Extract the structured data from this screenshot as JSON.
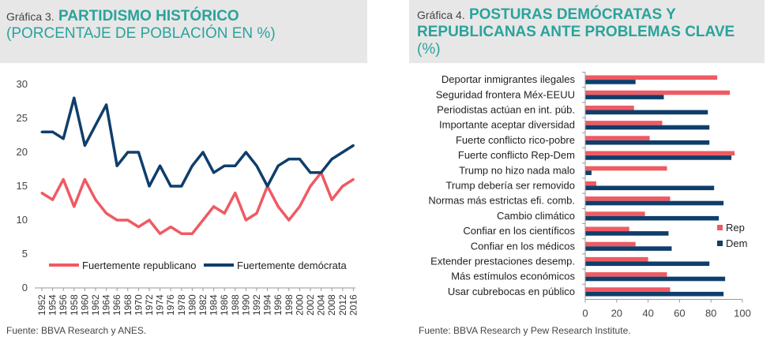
{
  "chart_data": [
    {
      "type": "line",
      "label": "Gráfica 3.",
      "title": "PARTIDISMO HISTÓRICO",
      "subtitle": "(PORCENTAJE DE POBLACIÓN EN %)",
      "x": [
        "1952",
        "1954",
        "1956",
        "1958",
        "1960",
        "1962",
        "1964",
        "1966",
        "1968",
        "1970",
        "1972",
        "1974",
        "1976",
        "1978",
        "1980",
        "1982",
        "1984",
        "1986",
        "1988",
        "1990",
        "1992",
        "1994",
        "1996",
        "1998",
        "2000",
        "2002",
        "2004",
        "2008",
        "2012",
        "2016"
      ],
      "series": [
        {
          "name": "Fuertemente republicano",
          "color": "#ef5a63",
          "values": [
            14,
            13,
            16,
            12,
            16,
            13,
            11,
            10,
            10,
            9,
            10,
            8,
            9,
            8,
            8,
            10,
            12,
            11,
            14,
            10,
            11,
            15,
            12,
            10,
            12,
            15,
            17,
            13,
            15,
            16
          ]
        },
        {
          "name": "Fuertemente demócrata",
          "color": "#0f3e6b",
          "values": [
            23,
            23,
            22,
            28,
            21,
            24,
            27,
            18,
            20,
            20,
            15,
            18,
            15,
            15,
            18,
            20,
            17,
            18,
            18,
            20,
            18,
            15,
            18,
            19,
            19,
            17,
            17,
            19,
            20,
            21
          ]
        }
      ],
      "ylim": [
        0,
        30
      ],
      "yticks": [
        "0",
        "5",
        "10",
        "15",
        "20",
        "25",
        "30"
      ],
      "legend_position": "bottom",
      "source": "Fuente: BBVA Research y ANES."
    },
    {
      "type": "bar",
      "orientation": "horizontal",
      "label": "Gráfica 4.",
      "title": "POSTURAS DEMÓCRATAS Y REPUBLICANAS ANTE PROBLEMAS CLAVE",
      "title_line1": "POSTURAS DEMÓCRATAS Y",
      "title_line2": "REPUBLICANAS ANTE PROBLEMAS CLAVE",
      "subtitle": "(%)",
      "categories": [
        "Deportar inmigrantes ilegales",
        "Seguridad frontera Méx-EEUU",
        "Periodistas actúan en int. púb.",
        "Importante aceptar diversidad",
        "Fuerte conflicto rico-pobre",
        "Fuerte conflicto Rep-Dem",
        "Trump no hizo nada malo",
        "Trump debería ser removido",
        "Normas más estrictas efi. comb.",
        "Cambio climático",
        "Confiar en los científicos",
        "Confiar en los médicos",
        "Extender prestaciones desemp.",
        "Más estímulos económicos",
        "Usar cubrebocas en público"
      ],
      "series": [
        {
          "name": "Rep",
          "color": "#ef5a63",
          "values": [
            84,
            92,
            31,
            49,
            41,
            95,
            52,
            7,
            54,
            38,
            28,
            32,
            40,
            52,
            54
          ]
        },
        {
          "name": "Dem",
          "color": "#0f3e6b",
          "values": [
            32,
            50,
            78,
            79,
            79,
            93,
            4,
            82,
            88,
            85,
            53,
            55,
            79,
            89,
            88
          ]
        }
      ],
      "xlim": [
        0,
        100
      ],
      "xticks": [
        "0",
        "20",
        "40",
        "60",
        "80",
        "100"
      ],
      "legend_position": "right",
      "source": "Fuente: BBVA Research y Pew Research Institute."
    }
  ]
}
